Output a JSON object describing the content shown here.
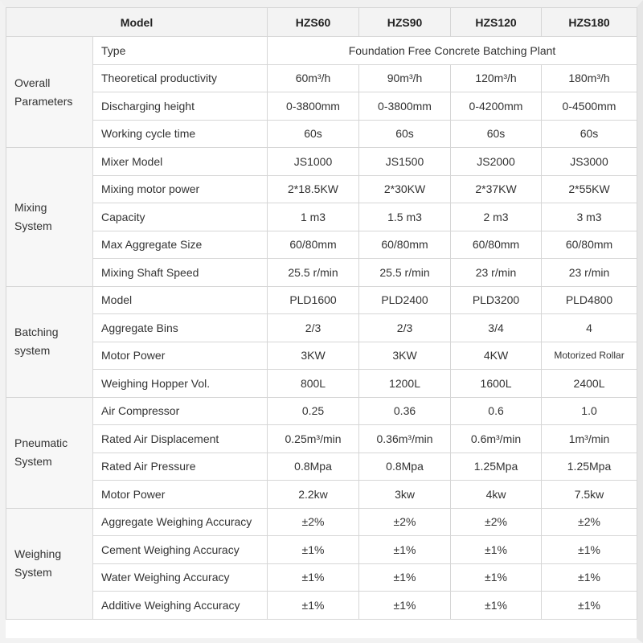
{
  "header": {
    "model_label": "Model",
    "models": [
      "HZS60",
      "HZS90",
      "HZS120",
      "HZS180"
    ]
  },
  "groups": [
    {
      "name": "Overall Parameters",
      "rows": [
        {
          "param": "Type",
          "span_value": "Foundation Free Concrete Batching Plant"
        },
        {
          "param": "Theoretical productivity",
          "values": [
            "60m³/h",
            "90m³/h",
            "120m³/h",
            "180m³/h"
          ]
        },
        {
          "param": "Discharging height",
          "values": [
            "0-3800mm",
            "0-3800mm",
            "0-4200mm",
            "0-4500mm"
          ]
        },
        {
          "param": "Working cycle time",
          "values": [
            "60s",
            "60s",
            "60s",
            "60s"
          ]
        }
      ]
    },
    {
      "name": "Mixing System",
      "rows": [
        {
          "param": "Mixer Model",
          "values": [
            "JS1000",
            "JS1500",
            "JS2000",
            "JS3000"
          ]
        },
        {
          "param": "Mixing motor power",
          "values": [
            "2*18.5KW",
            "2*30KW",
            "2*37KW",
            "2*55KW"
          ]
        },
        {
          "param": "Capacity",
          "values": [
            "1 m3",
            "1.5 m3",
            "2 m3",
            "3 m3"
          ]
        },
        {
          "param": "Max Aggregate Size",
          "values": [
            "60/80mm",
            "60/80mm",
            "60/80mm",
            "60/80mm"
          ]
        },
        {
          "param": "Mixing Shaft Speed",
          "values": [
            "25.5 r/min",
            "25.5 r/min",
            "23 r/min",
            "23 r/min"
          ]
        }
      ]
    },
    {
      "name": "Batching system",
      "rows": [
        {
          "param": "Model",
          "values": [
            "PLD1600",
            "PLD2400",
            "PLD3200",
            "PLD4800"
          ]
        },
        {
          "param": "Aggregate Bins",
          "values": [
            "2/3",
            "2/3",
            "3/4",
            "4"
          ]
        },
        {
          "param": "Motor Power",
          "values": [
            "3KW",
            "3KW",
            "4KW",
            "Motorized Rollar"
          ]
        },
        {
          "param": "Weighing Hopper Vol.",
          "values": [
            "800L",
            "1200L",
            "1600L",
            "2400L"
          ]
        }
      ]
    },
    {
      "name": "Pneumatic System",
      "rows": [
        {
          "param": "Air Compressor",
          "values": [
            "0.25",
            "0.36",
            "0.6",
            "1.0"
          ]
        },
        {
          "param": "Rated Air Displacement",
          "values": [
            "0.25m³/min",
            "0.36m³/min",
            "0.6m³/min",
            "1m³/min"
          ]
        },
        {
          "param": "Rated Air Pressure",
          "values": [
            "0.8Mpa",
            "0.8Mpa",
            "1.25Mpa",
            "1.25Mpa"
          ]
        },
        {
          "param": "Motor Power",
          "values": [
            "2.2kw",
            "3kw",
            "4kw",
            "7.5kw"
          ]
        }
      ]
    },
    {
      "name": "Weighing System",
      "rows": [
        {
          "param": "Aggregate Weighing Accuracy",
          "values": [
            "±2%",
            "±2%",
            "±2%",
            "±2%"
          ]
        },
        {
          "param": "Cement Weighing Accuracy",
          "values": [
            "±1%",
            "±1%",
            "±1%",
            "±1%"
          ]
        },
        {
          "param": "Water Weighing Accuracy",
          "values": [
            "±1%",
            "±1%",
            "±1%",
            "±1%"
          ]
        },
        {
          "param": "Additive Weighing Accuracy",
          "values": [
            "±1%",
            "±1%",
            "±1%",
            "±1%"
          ]
        }
      ]
    }
  ]
}
